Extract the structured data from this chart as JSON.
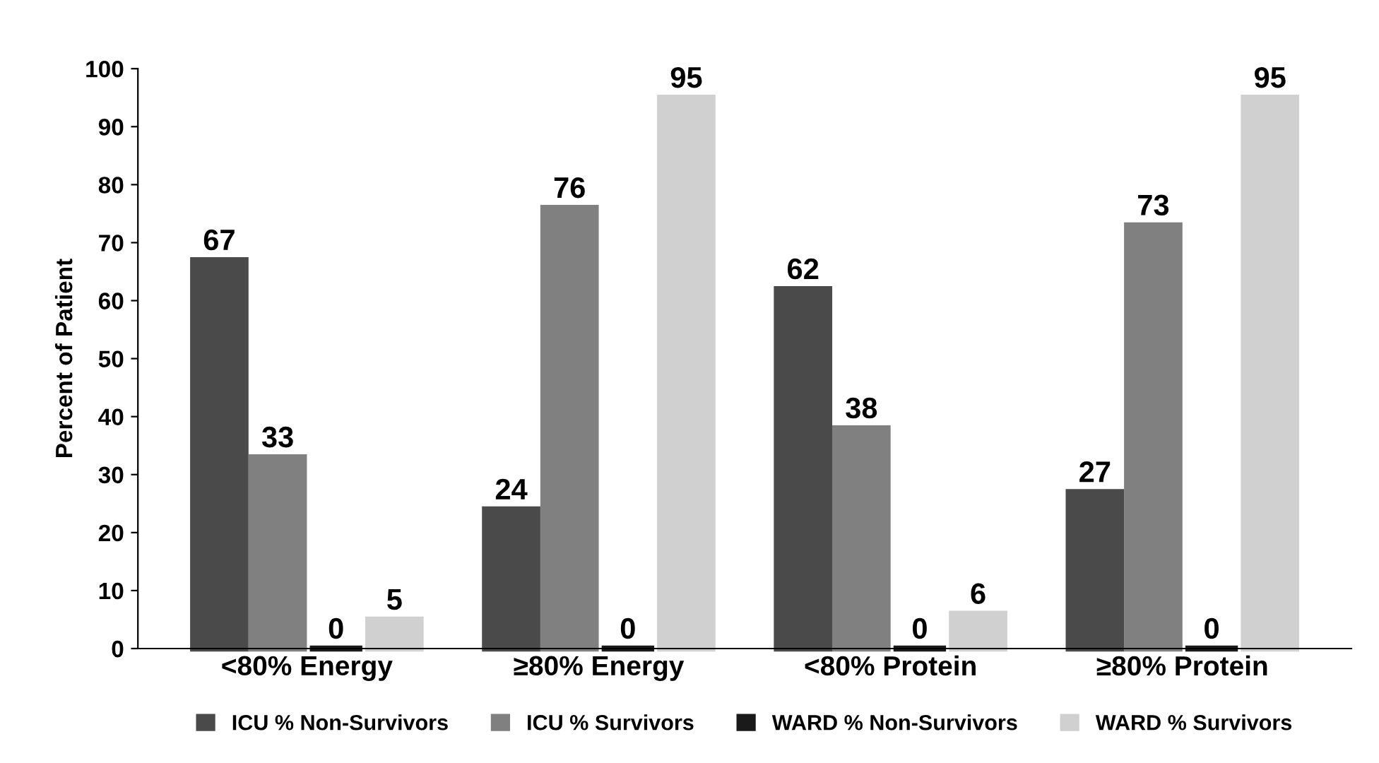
{
  "chart_data": {
    "type": "bar",
    "ylabel": "Percent of Patient",
    "categories": [
      "<80% Energy",
      "≥80% Energy",
      "<80% Protein",
      "≥80% Protein"
    ],
    "series": [
      {
        "name": "ICU % Non-Survivors",
        "color": "#4a4a4a",
        "values": [
          67,
          24,
          62,
          27
        ]
      },
      {
        "name": "ICU % Survivors",
        "color": "#808080",
        "values": [
          33,
          76,
          38,
          73
        ]
      },
      {
        "name": "WARD % Non-Survivors",
        "color": "#1a1a1a",
        "values": [
          0,
          0,
          0,
          0
        ]
      },
      {
        "name": "WARD % Survivors",
        "color": "#d0d0d0",
        "values": [
          5,
          95,
          6,
          95
        ]
      }
    ],
    "ylim": [
      0,
      100
    ],
    "yticks": [
      0,
      10,
      20,
      30,
      40,
      50,
      60,
      70,
      80,
      90,
      100
    ],
    "grid": false,
    "legend": "bottom",
    "data_labels": true
  }
}
